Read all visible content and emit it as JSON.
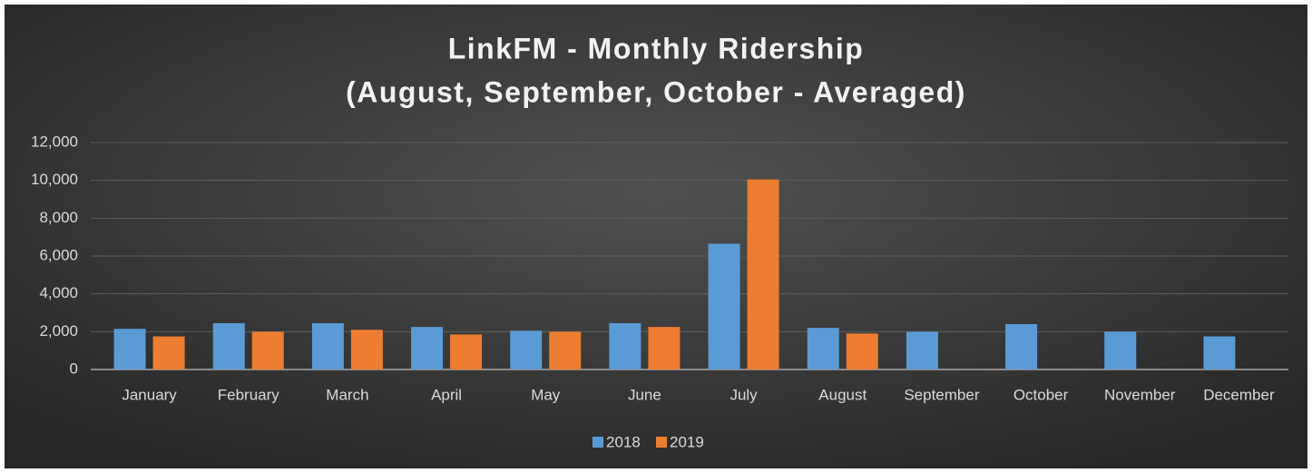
{
  "chart_data": {
    "type": "bar",
    "title": "LinkFM - Monthly Ridership",
    "subtitle": "(August, September, October - Averaged)",
    "categories": [
      "January",
      "February",
      "March",
      "April",
      "May",
      "June",
      "July",
      "August",
      "September",
      "October",
      "November",
      "December"
    ],
    "series": [
      {
        "name": "2018",
        "color": "#5b9bd5",
        "values": [
          2150,
          2450,
          2450,
          2250,
          2050,
          2450,
          6650,
          2200,
          2000,
          2400,
          2000,
          1750
        ]
      },
      {
        "name": "2019",
        "color": "#ed7d31",
        "values": [
          1750,
          2000,
          2100,
          1850,
          2000,
          2250,
          10050,
          1900,
          null,
          null,
          null,
          null
        ]
      }
    ],
    "ylim": [
      0,
      12000
    ],
    "yticks": [
      0,
      {
        "value": 2000,
        "label": "2,000"
      },
      {
        "value": 4000,
        "label": "4,000"
      },
      {
        "value": 6000,
        "label": "6,000"
      },
      {
        "value": 8000,
        "label": "8,000"
      },
      {
        "value": 10000,
        "label": "10,000"
      },
      {
        "value": 12000,
        "label": "12,000"
      }
    ],
    "grid": true,
    "legend": "bottom"
  }
}
